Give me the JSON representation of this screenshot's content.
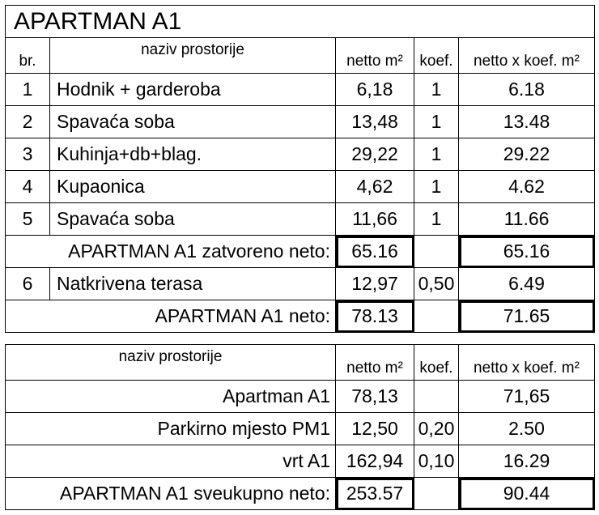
{
  "title": "APARTMAN A1",
  "table1": {
    "headers": {
      "no": "br.",
      "name": "naziv prostorije",
      "netto": "netto m²",
      "koef": "koef.",
      "product": "netto x koef. m²"
    },
    "rows": [
      {
        "no": "1",
        "name": "Hodnik + garderoba",
        "netto": "6,18",
        "koef": "1",
        "product": "6.18"
      },
      {
        "no": "2",
        "name": "Spavaća soba",
        "netto": "13,48",
        "koef": "1",
        "product": "13.48"
      },
      {
        "no": "3",
        "name": "Kuhinja+db+blag.",
        "netto": "29,22",
        "koef": "1",
        "product": "29.22"
      },
      {
        "no": "4",
        "name": "Kupaonica",
        "netto": "4,62",
        "koef": "1",
        "product": "4.62"
      },
      {
        "no": "5",
        "name": "Spavaća soba",
        "netto": "11,66",
        "koef": "1",
        "product": "11.66"
      }
    ],
    "subtotal_closed": {
      "label": "APARTMAN A1 zatvoreno neto:",
      "netto": "65.16",
      "product": "65.16"
    },
    "terrace": {
      "no": "6",
      "name": "Natkrivena terasa",
      "netto": "12,97",
      "koef": "0,50",
      "product": "6.49"
    },
    "total": {
      "label": "APARTMAN A1 neto:",
      "netto": "78.13",
      "product": "71.65"
    }
  },
  "table2": {
    "headers": {
      "name": "naziv prostorije",
      "netto": "netto m²",
      "koef": "koef.",
      "product": "netto x koef. m²"
    },
    "rows": [
      {
        "name": "Apartman A1",
        "netto": "78,13",
        "koef": "",
        "product": "71,65"
      },
      {
        "name": "Parkirno mjesto PM1",
        "netto": "12,50",
        "koef": "0,20",
        "product": "2.50"
      },
      {
        "name": "vrt A1",
        "netto": "162,94",
        "koef": "0,10",
        "product": "16.29"
      }
    ],
    "grand_total": {
      "label": "APARTMAN A1 sveukupno neto:",
      "netto": "253.57",
      "product": "90.44"
    }
  }
}
